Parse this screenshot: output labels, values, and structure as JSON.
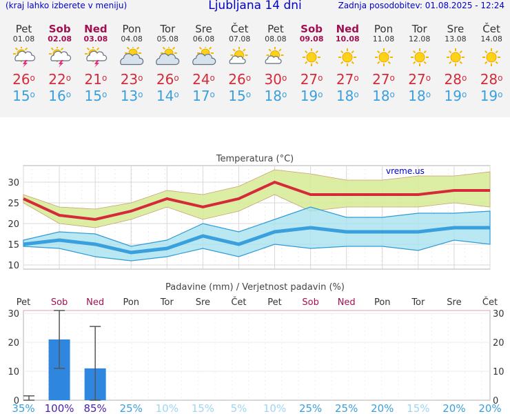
{
  "header": {
    "left_note": "(kraj lahko izberete v meniju)",
    "title": "Ljubljana 14 dni",
    "updated": "Zadnja posodobitev: 01.08.2025 - 12:24"
  },
  "days": [
    {
      "name": "Pet",
      "date": "01.08",
      "weekend": false,
      "icon": "storm-sun-icon",
      "max": "26",
      "min": "15"
    },
    {
      "name": "Sob",
      "date": "02.08",
      "weekend": true,
      "icon": "storm-sun-icon",
      "max": "22",
      "min": "16"
    },
    {
      "name": "Ned",
      "date": "03.08",
      "weekend": true,
      "icon": "storm-sun-icon",
      "max": "21",
      "min": "15"
    },
    {
      "name": "Pon",
      "date": "04.08",
      "weekend": false,
      "icon": "cloud-sun-icon",
      "max": "23",
      "min": "13"
    },
    {
      "name": "Tor",
      "date": "05.08",
      "weekend": false,
      "icon": "cloud-sun-icon",
      "max": "26",
      "min": "14"
    },
    {
      "name": "Sre",
      "date": "06.08",
      "weekend": false,
      "icon": "cloud-sun-icon",
      "max": "24",
      "min": "17"
    },
    {
      "name": "Čet",
      "date": "07.08",
      "weekend": false,
      "icon": "partly-sunny-icon",
      "max": "26",
      "min": "15"
    },
    {
      "name": "Pet",
      "date": "08.08",
      "weekend": false,
      "icon": "partly-sunny-icon",
      "max": "30",
      "min": "18"
    },
    {
      "name": "Sob",
      "date": "09.08",
      "weekend": true,
      "icon": "sun-icon",
      "max": "27",
      "min": "19"
    },
    {
      "name": "Ned",
      "date": "10.08",
      "weekend": true,
      "icon": "sun-icon",
      "max": "27",
      "min": "18"
    },
    {
      "name": "Pon",
      "date": "11.08",
      "weekend": false,
      "icon": "sun-icon",
      "max": "27",
      "min": "18"
    },
    {
      "name": "Tor",
      "date": "12.08",
      "weekend": false,
      "icon": "sun-icon",
      "max": "27",
      "min": "18"
    },
    {
      "name": "Sre",
      "date": "13.08",
      "weekend": false,
      "icon": "sun-icon",
      "max": "28",
      "min": "19"
    },
    {
      "name": "Čet",
      "date": "14.08",
      "weekend": false,
      "icon": "sun-icon",
      "max": "28",
      "min": "19"
    }
  ],
  "colors": {
    "weekend": "#a01050",
    "max_line": "#d42a3a",
    "min_line": "#3aa0dd",
    "max_band": "#d8ec9a",
    "min_band": "#a8e2f0",
    "precip_bar": "#2e86de",
    "prob_high": "#4a20b0",
    "prob_mid": "#3aa0dd",
    "prob_low": "#9ed6f2"
  },
  "chart_data": [
    {
      "type": "line",
      "title": "Temperatura (°C)",
      "watermark": "vreme.us",
      "ylim": [
        9,
        34
      ],
      "yticks": [
        10,
        15,
        20,
        25,
        30
      ],
      "grid": true,
      "series": [
        {
          "values": [
            26,
            22,
            21,
            23,
            26,
            24,
            26,
            30,
            27,
            27,
            27,
            27,
            28,
            28
          ],
          "band_low": [
            25,
            20,
            19,
            21,
            24,
            21,
            23,
            27,
            23,
            24,
            24,
            24,
            25,
            24
          ],
          "band_high": [
            27,
            24,
            23.5,
            25,
            28,
            27,
            29,
            33,
            32,
            30.5,
            30.5,
            31.5,
            31.5,
            32.5
          ]
        },
        {
          "values": [
            15,
            16,
            15,
            13,
            14,
            17,
            15,
            18,
            19,
            18,
            18,
            18,
            19,
            19
          ],
          "band_low": [
            14.5,
            14,
            12,
            11,
            12,
            14,
            12,
            15,
            14,
            14.5,
            14.5,
            13.5,
            16,
            15
          ],
          "band_high": [
            16,
            18,
            17.5,
            14.5,
            16,
            20,
            18,
            21,
            24,
            21.5,
            21.5,
            22.5,
            22.5,
            23
          ]
        }
      ]
    },
    {
      "type": "bar",
      "title": "Padavine (mm) / Verjetnost padavin (%)",
      "ylim": [
        0,
        31
      ],
      "yticks": [
        0,
        10,
        20,
        30
      ],
      "categories": [
        "Pet",
        "Sob",
        "Ned",
        "Pon",
        "Tor",
        "Sre",
        "Čet",
        "Pet",
        "Sob",
        "Ned",
        "Pon",
        "Tor",
        "Sre",
        "Čet"
      ],
      "values": [
        0,
        21,
        11,
        0,
        0,
        0,
        0,
        0,
        0,
        0,
        0,
        0,
        0,
        0
      ],
      "error_low": [
        0,
        11,
        0,
        0,
        0,
        0,
        0,
        0,
        0,
        0,
        0,
        0,
        0,
        0
      ],
      "error_high": [
        1.5,
        31,
        25.5,
        0,
        0,
        0,
        0,
        0,
        0,
        0,
        0,
        0,
        0,
        0
      ],
      "probability": [
        "35%",
        "100%",
        "85%",
        "25%",
        "10%",
        "15%",
        "5%",
        "10%",
        "25%",
        "25%",
        "20%",
        "15%",
        "20%",
        "20%"
      ]
    }
  ]
}
